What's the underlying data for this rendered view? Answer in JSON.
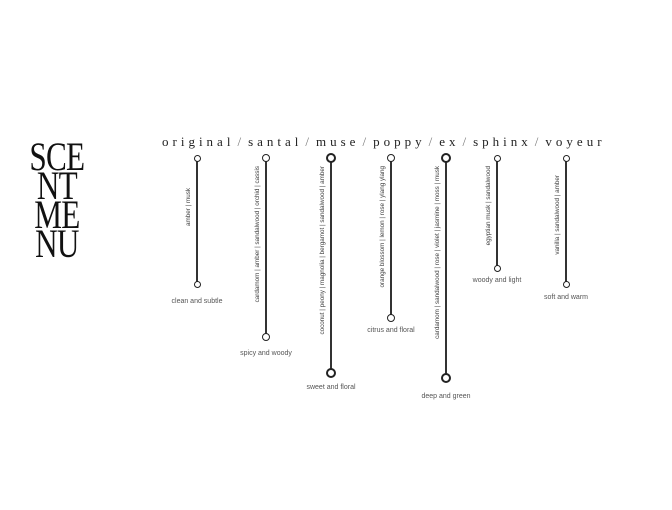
{
  "logo": {
    "lines": [
      "SCE",
      "NT",
      "ME",
      "NU"
    ]
  },
  "scents": [
    {
      "name": "original",
      "notes": "amber  |  musk",
      "description": "clean and subtle"
    },
    {
      "name": "santal",
      "notes": "cardamom  |  amber  |  sandalwood  |  orchid  |  cassis",
      "description": "spicy and woody"
    },
    {
      "name": "muse",
      "notes": "coconut  |  peony  |  magnolia  |  bergamot  |  sandalwood  |  amber",
      "description": "sweet and floral"
    },
    {
      "name": "poppy",
      "notes": "orange blossom  |  lemon  |  rose  |  ylang ylang",
      "description": "citrus and floral"
    },
    {
      "name": "ex",
      "notes": "cardamom  |  sandalwood  |  rose  |  violet  |  jasmine  |  moss  |  musk",
      "description": "deep and green"
    },
    {
      "name": "sphinx",
      "notes": "egyptian musk  |  sandalwood",
      "description": "woody and light"
    },
    {
      "name": "voyeur",
      "notes": "vanilla  |  sandalwood  |  amber",
      "description": "soft and warm"
    }
  ],
  "separator": "/"
}
